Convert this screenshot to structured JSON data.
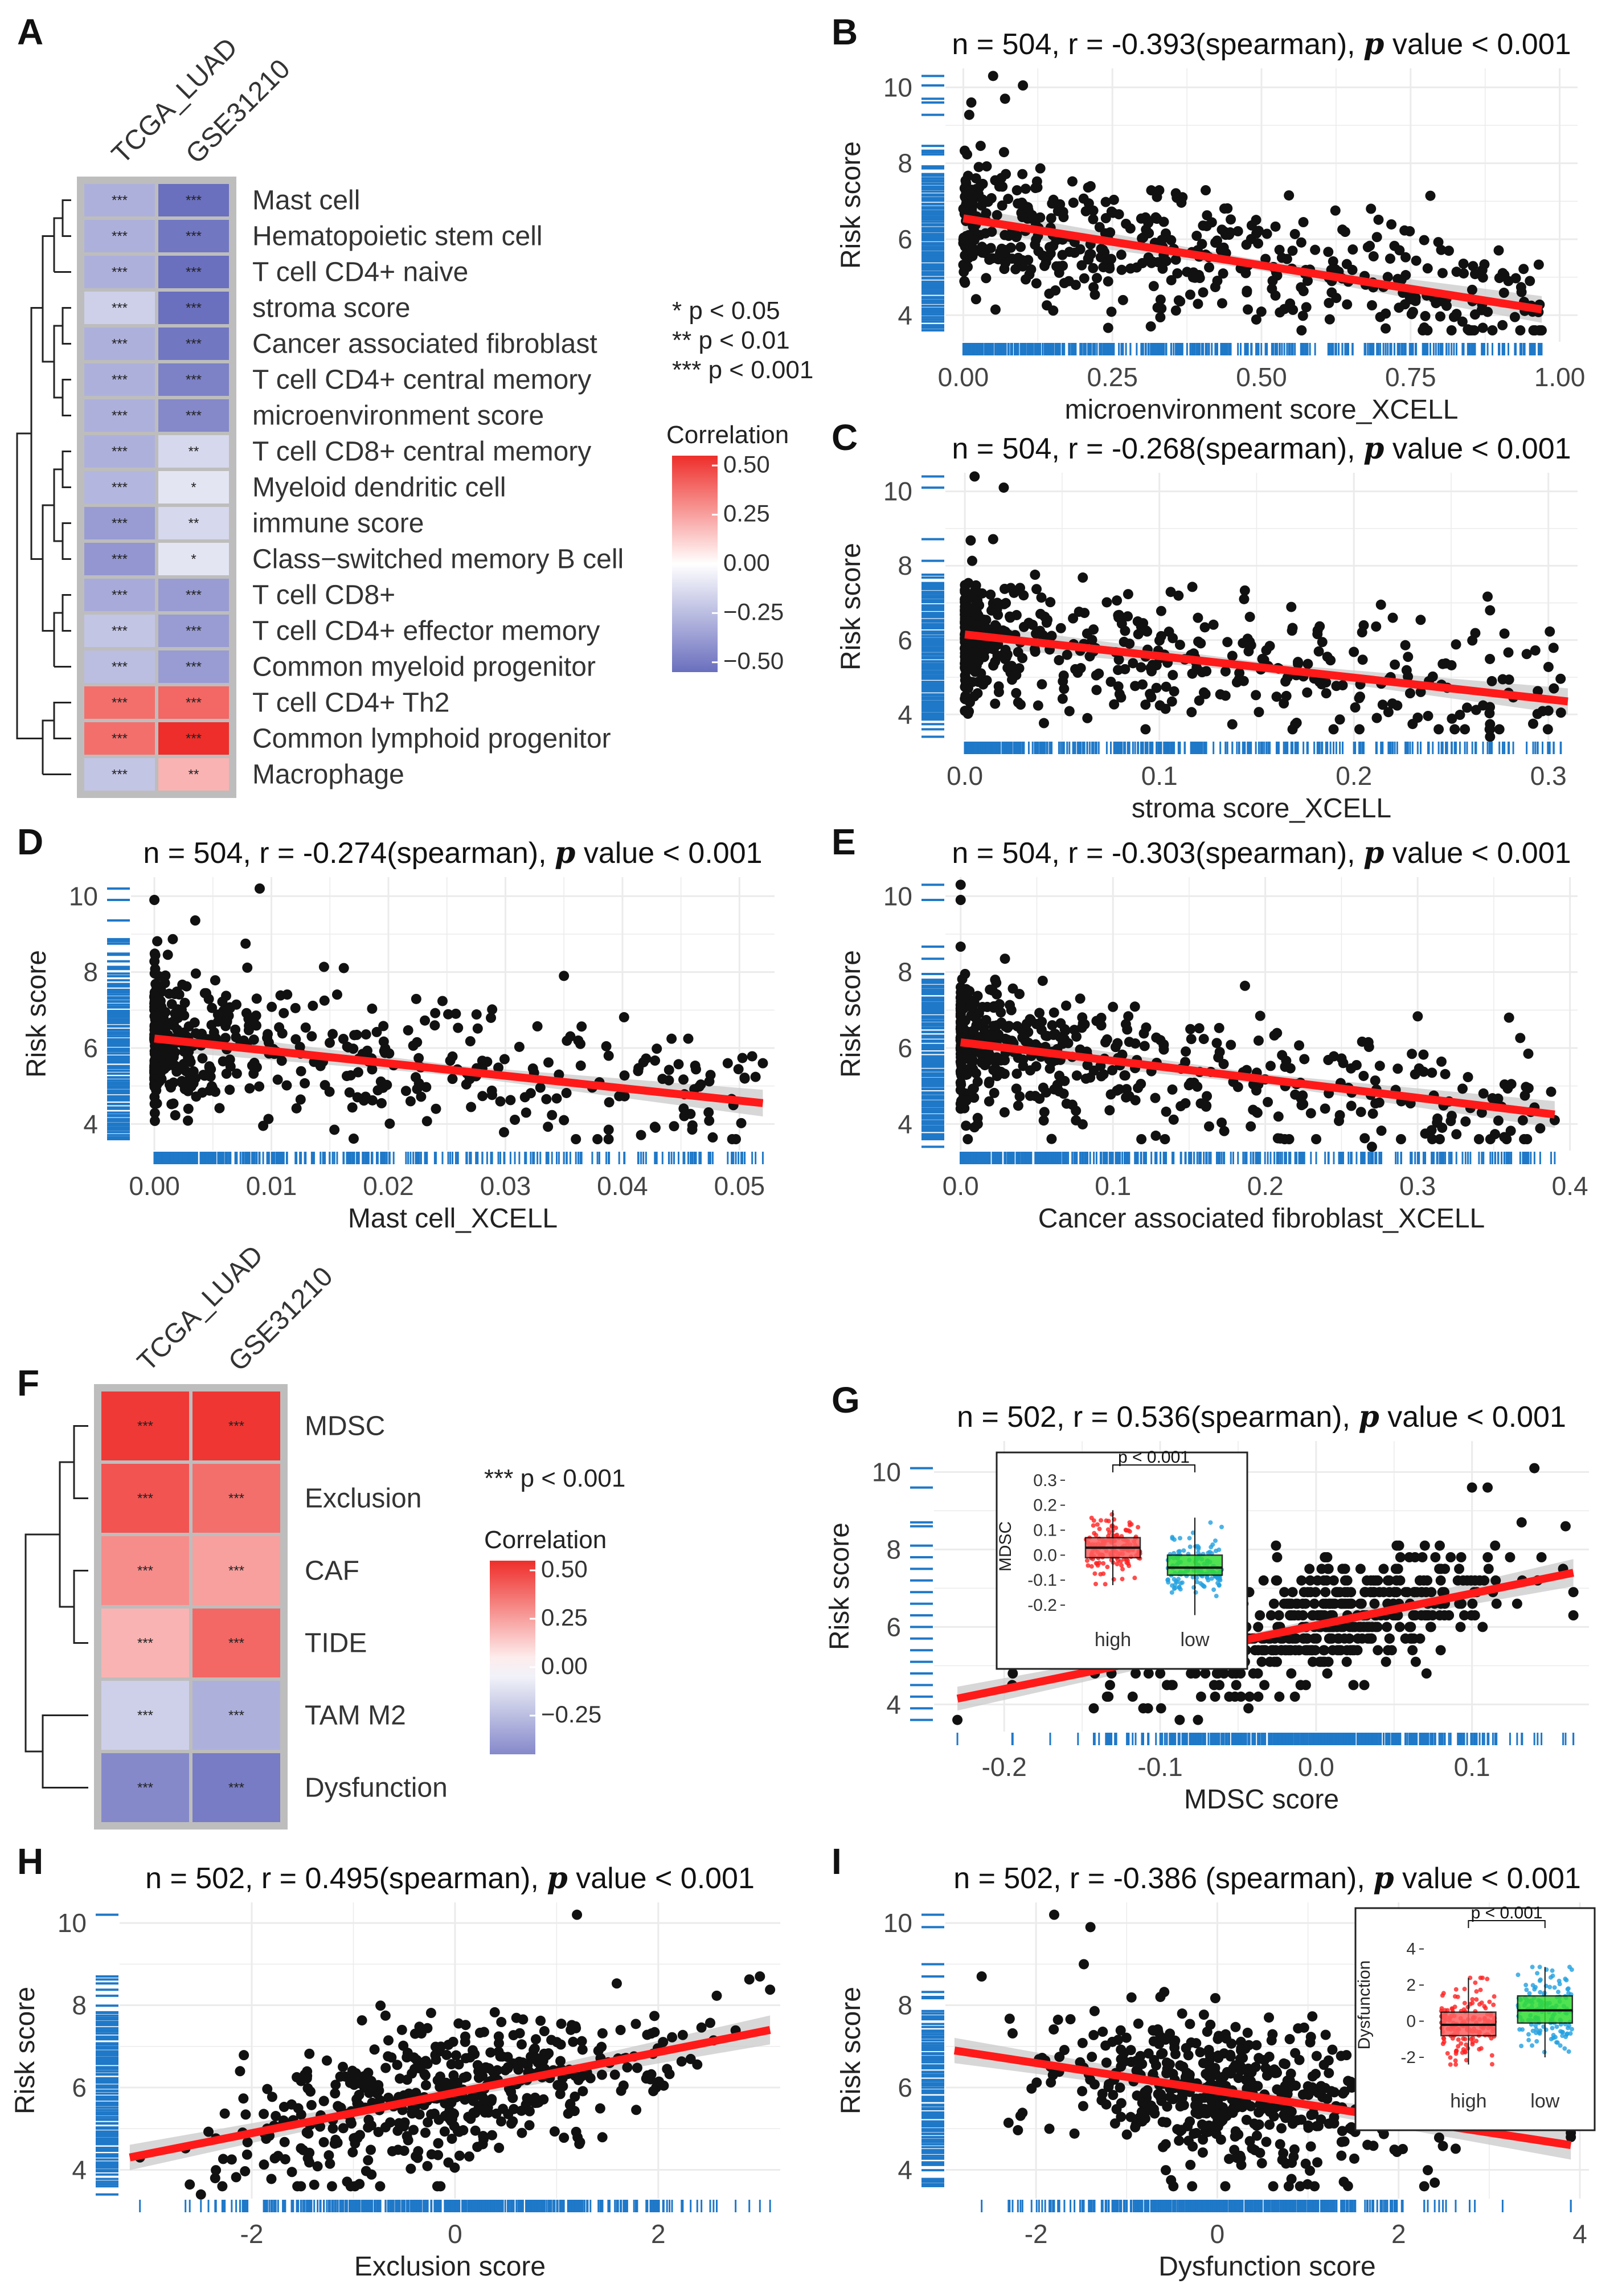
{
  "colors": {
    "blue_low": "#6a6fbe",
    "white_mid": "#ffffff",
    "red_high": "#ee2e2a",
    "rug": "#1f78c8",
    "fit_line": "#ff1a1a",
    "ci_band": "#c9c9c9",
    "points": "#111111",
    "grid": "#ebebeb",
    "heatmap_bg": "#bdbdbd",
    "box_high": "#ff2020",
    "box_low": "#20a0e0",
    "box_fill_high": "#ff6060",
    "box_fill_low": "#33dd33"
  },
  "sig_legend_a": [
    "*     p < 0.05",
    "**   p < 0.01",
    "*** p < 0.001"
  ],
  "sig_legend_f": [
    "*** p < 0.001"
  ],
  "chart_data": [
    {
      "panel": "A",
      "type": "heatmap",
      "columns": [
        "TCGA_LUAD",
        "GSE31210"
      ],
      "rows": [
        "Mast cell",
        "Hematopoietic stem cell",
        "T cell CD4+ naive",
        "stroma score",
        "Cancer associated fibroblast",
        "T cell CD4+ central memory",
        "microenvironment score",
        "T cell CD8+ central memory",
        "Myeloid dendritic cell",
        "immune score",
        "Class−switched memory B cell",
        "T cell CD8+",
        "T cell CD4+ effector memory",
        "Common myeloid progenitor",
        "T cell CD4+ Th2",
        "Common lymphoid progenitor",
        "Macrophage"
      ],
      "values": [
        [
          -0.3,
          -0.55
        ],
        [
          -0.3,
          -0.52
        ],
        [
          -0.3,
          -0.55
        ],
        [
          -0.18,
          -0.55
        ],
        [
          -0.3,
          -0.52
        ],
        [
          -0.3,
          -0.48
        ],
        [
          -0.3,
          -0.45
        ],
        [
          -0.3,
          -0.15
        ],
        [
          -0.28,
          -0.1
        ],
        [
          -0.38,
          -0.15
        ],
        [
          -0.4,
          -0.1
        ],
        [
          -0.32,
          -0.38
        ],
        [
          -0.22,
          -0.38
        ],
        [
          -0.25,
          -0.38
        ],
        [
          0.38,
          0.4
        ],
        [
          0.38,
          0.55
        ],
        [
          -0.22,
          0.2
        ]
      ],
      "labels": [
        [
          "***",
          "***"
        ],
        [
          "***",
          "***"
        ],
        [
          "***",
          "***"
        ],
        [
          "***",
          "***"
        ],
        [
          "***",
          "***"
        ],
        [
          "***",
          "***"
        ],
        [
          "***",
          "***"
        ],
        [
          "***",
          "**"
        ],
        [
          "***",
          "*"
        ],
        [
          "***",
          "**"
        ],
        [
          "***",
          "*"
        ],
        [
          "***",
          "***"
        ],
        [
          "***",
          "***"
        ],
        [
          "***",
          "***"
        ],
        [
          "***",
          "***"
        ],
        [
          "***",
          "***"
        ],
        [
          "***",
          "**"
        ]
      ],
      "legend_title": "Correlation",
      "legend_ticks": [
        0.5,
        0.25,
        0.0,
        -0.25,
        -0.5
      ],
      "legend_tick_labels": [
        "0.50",
        "0.25",
        "0.00",
        "−0.25",
        "−0.50"
      ],
      "value_range": [
        -0.55,
        0.55
      ]
    },
    {
      "panel": "B",
      "type": "scatter",
      "title_pre": "n = 504, r = -0.393(spearman),",
      "title_p": "p",
      "title_post": " value < 0.001",
      "xlabel": "microenvironment score_XCELL",
      "ylabel": "Risk score",
      "xlim": [
        -0.03,
        1.03
      ],
      "ylim": [
        3.3,
        10.5
      ],
      "xticks": [
        0,
        0.25,
        0.5,
        0.75,
        1.0
      ],
      "xtick_labels": [
        "0.00",
        "0.25",
        "0.50",
        "0.75",
        "1.00"
      ],
      "yticks": [
        4,
        6,
        8,
        10
      ],
      "ytick_labels": [
        "4",
        "6",
        "8",
        "10"
      ],
      "n": 504,
      "fit": {
        "x0": 0.0,
        "y0": 6.55,
        "x1": 0.97,
        "y1": 4.15
      },
      "x_dist": {
        "type": "skew",
        "max": 0.97,
        "power": 1.6
      },
      "resid_sd": 0.9,
      "outliers": [
        [
          0.05,
          10.3
        ],
        [
          0.1,
          10.05
        ],
        [
          0.07,
          9.7
        ],
        [
          0.95,
          4.9
        ]
      ]
    },
    {
      "panel": "C",
      "type": "scatter",
      "title_pre": "n = 504, r = -0.268(spearman),",
      "title_p": "p",
      "title_post": " value < 0.001",
      "xlabel": "stroma score_XCELL",
      "ylabel": "Risk score",
      "xlim": [
        -0.01,
        0.315
      ],
      "ylim": [
        3.3,
        10.5
      ],
      "xticks": [
        0,
        0.1,
        0.2,
        0.3
      ],
      "xtick_labels": [
        "0.0",
        "0.1",
        "0.2",
        "0.3"
      ],
      "yticks": [
        4,
        6,
        8,
        10
      ],
      "ytick_labels": [
        "4",
        "6",
        "8",
        "10"
      ],
      "n": 504,
      "fit": {
        "x0": 0.0,
        "y0": 6.15,
        "x1": 0.31,
        "y1": 4.35
      },
      "x_dist": {
        "type": "skew",
        "max": 0.31,
        "power": 2.6
      },
      "resid_sd": 0.9,
      "outliers": [
        [
          0.005,
          10.4
        ],
        [
          0.02,
          10.1
        ],
        [
          0.3,
          4.1
        ],
        [
          0.27,
          6.8
        ],
        [
          0.22,
          6.6
        ],
        [
          0.27,
          3.4
        ]
      ]
    },
    {
      "panel": "D",
      "type": "scatter",
      "title_pre": "n = 504, r = -0.274(spearman),",
      "title_p": "p",
      "title_post": " value < 0.001",
      "xlabel": "Mast cell_XCELL",
      "ylabel": "Risk score",
      "xlim": [
        -0.002,
        0.053
      ],
      "ylim": [
        3.3,
        10.5
      ],
      "xticks": [
        0,
        0.01,
        0.02,
        0.03,
        0.04,
        0.05
      ],
      "xtick_labels": [
        "0.00",
        "0.01",
        "0.02",
        "0.03",
        "0.04",
        "0.05"
      ],
      "yticks": [
        4,
        6,
        8,
        10
      ],
      "ytick_labels": [
        "4",
        "6",
        "8",
        "10"
      ],
      "n": 504,
      "fit": {
        "x0": 0.0,
        "y0": 6.25,
        "x1": 0.052,
        "y1": 4.55
      },
      "x_dist": {
        "type": "skew",
        "max": 0.052,
        "power": 2.8
      },
      "resid_sd": 0.9,
      "outliers": [
        [
          0.009,
          10.2
        ],
        [
          0.0,
          9.9
        ],
        [
          0.035,
          7.9
        ],
        [
          0.052,
          5.6
        ],
        [
          0.049,
          5.6
        ],
        [
          0.035,
          4.1
        ]
      ]
    },
    {
      "panel": "E",
      "type": "scatter",
      "title_pre": "n = 504, r = -0.303(spearman),",
      "title_p": "p",
      "title_post": " value < 0.001",
      "xlabel": "Cancer associated fibroblast_XCELL",
      "ylabel": "Risk score",
      "xlim": [
        -0.01,
        0.405
      ],
      "ylim": [
        3.3,
        10.5
      ],
      "xticks": [
        0,
        0.1,
        0.2,
        0.3,
        0.4
      ],
      "xtick_labels": [
        "0.0",
        "0.1",
        "0.2",
        "0.3",
        "0.4"
      ],
      "yticks": [
        4,
        6,
        8,
        10
      ],
      "ytick_labels": [
        "4",
        "6",
        "8",
        "10"
      ],
      "n": 504,
      "fit": {
        "x0": 0.0,
        "y0": 6.15,
        "x1": 0.39,
        "y1": 4.25
      },
      "x_dist": {
        "type": "skew",
        "max": 0.39,
        "power": 2.7
      },
      "resid_sd": 0.85,
      "outliers": [
        [
          0.0,
          10.3
        ],
        [
          0.0,
          9.9
        ],
        [
          0.36,
          6.8
        ],
        [
          0.39,
          4.1
        ],
        [
          0.27,
          3.4
        ]
      ]
    },
    {
      "panel": "F",
      "type": "heatmap",
      "columns": [
        "TCGA_LUAD",
        "GSE31210"
      ],
      "rows": [
        "MDSC",
        "Exclusion",
        "CAF",
        "TIDE",
        "TAM M2",
        "Dysfunction"
      ],
      "values": [
        [
          0.52,
          0.53
        ],
        [
          0.45,
          0.38
        ],
        [
          0.3,
          0.25
        ],
        [
          0.2,
          0.4
        ],
        [
          -0.18,
          -0.3
        ],
        [
          -0.45,
          -0.5
        ]
      ],
      "labels": [
        [
          "***",
          "***"
        ],
        [
          "***",
          "***"
        ],
        [
          "***",
          "***"
        ],
        [
          "***",
          "***"
        ],
        [
          "***",
          "***"
        ],
        [
          "***",
          "***"
        ]
      ],
      "legend_title": "Correlation",
      "legend_ticks": [
        0.5,
        0.25,
        0.0,
        -0.25
      ],
      "legend_tick_labels": [
        "0.50",
        "0.25",
        "0.00",
        "−0.25"
      ],
      "value_range": [
        -0.55,
        0.55
      ]
    },
    {
      "panel": "G",
      "type": "scatter",
      "title_pre": "n = 502, r = 0.536(spearman),",
      "title_p": "p",
      "title_post": " value < 0.001",
      "xlabel": "MDSC score",
      "ylabel": "Risk score",
      "xlim": [
        -0.245,
        0.175
      ],
      "ylim": [
        3.3,
        10.8
      ],
      "xticks": [
        -0.2,
        -0.1,
        0.0,
        0.1
      ],
      "xtick_labels": [
        "-0.2",
        "-0.1",
        "0.0",
        "0.1"
      ],
      "yticks": [
        4,
        6,
        8,
        10
      ],
      "ytick_labels": [
        "4",
        "6",
        "8",
        "10"
      ],
      "n": 502,
      "fit": {
        "x0": -0.23,
        "y0": 4.15,
        "x1": 0.165,
        "y1": 7.4
      },
      "x_dist": {
        "type": "normal",
        "mean": 0.0,
        "sd": 0.065,
        "min": -0.23,
        "max": 0.165
      },
      "resid_sd": 0.75,
      "rounding": 0.3,
      "outliers": [
        [
          -0.23,
          3.6
        ],
        [
          0.1,
          9.6
        ],
        [
          0.11,
          9.6
        ],
        [
          0.14,
          10.1
        ],
        [
          0.16,
          8.6
        ]
      ],
      "inset": {
        "ylabel": "MDSC",
        "groups": [
          "high",
          "low"
        ],
        "yticks": [
          -0.2,
          -0.1,
          0.0,
          0.1,
          0.2,
          0.3
        ],
        "ytick_labels": [
          "-0.2",
          "-0.1",
          "0.0",
          "0.1",
          "0.2",
          "0.3"
        ],
        "ylim": [
          -0.25,
          0.32
        ],
        "pval": "p < 0.001",
        "high": {
          "q1": -0.01,
          "median": 0.03,
          "q3": 0.07,
          "min": -0.12,
          "max": 0.18
        },
        "low": {
          "q1": -0.08,
          "median": -0.05,
          "q3": 0.0,
          "min": -0.24,
          "max": 0.15
        }
      }
    },
    {
      "panel": "H",
      "type": "scatter",
      "title_pre": "n = 502, r = 0.495(spearman),",
      "title_p": "p",
      "title_post": " value < 0.001",
      "xlabel": "Exclusion score",
      "ylabel": "Risk score",
      "xlim": [
        -3.3,
        3.2
      ],
      "ylim": [
        3.3,
        10.5
      ],
      "xticks": [
        -2,
        0,
        2
      ],
      "xtick_labels": [
        "-2",
        "0",
        "2"
      ],
      "yticks": [
        4,
        6,
        8,
        10
      ],
      "ytick_labels": [
        "4",
        "6",
        "8",
        "10"
      ],
      "n": 502,
      "fit": {
        "x0": -3.2,
        "y0": 4.3,
        "x1": 3.1,
        "y1": 7.4
      },
      "x_dist": {
        "type": "normal",
        "mean": 0.0,
        "sd": 1.05,
        "min": -3.2,
        "max": 3.1
      },
      "resid_sd": 0.85,
      "outliers": [
        [
          1.2,
          10.2
        ],
        [
          3.0,
          8.7
        ],
        [
          -3.1,
          4.3
        ],
        [
          -2.5,
          3.4
        ]
      ]
    },
    {
      "panel": "I",
      "type": "scatter",
      "title_pre": "n = 502, r = -0.386 (spearman),",
      "title_p": "p",
      "title_post": " value < 0.001",
      "xlabel": "Dysfunction score",
      "ylabel": "Risk score",
      "xlim": [
        -3.0,
        4.1
      ],
      "ylim": [
        3.3,
        10.5
      ],
      "xticks": [
        -2,
        0,
        2,
        4
      ],
      "xtick_labels": [
        "-2",
        "0",
        "2",
        "4"
      ],
      "yticks": [
        4,
        6,
        8,
        10
      ],
      "ytick_labels": [
        "4",
        "6",
        "8",
        "10"
      ],
      "n": 502,
      "fit": {
        "x0": -2.9,
        "y0": 6.9,
        "x1": 3.9,
        "y1": 4.6
      },
      "x_dist": {
        "type": "normal",
        "mean": 0.1,
        "sd": 1.05,
        "min": -2.9,
        "max": 3.9
      },
      "resid_sd": 0.85,
      "outliers": [
        [
          -1.8,
          10.2
        ],
        [
          -1.4,
          9.9
        ],
        [
          3.9,
          4.9
        ],
        [
          -2.6,
          8.7
        ]
      ],
      "inset": {
        "ylabel": "Dysfunction",
        "groups": [
          "high",
          "low"
        ],
        "yticks": [
          -2,
          0,
          2,
          4
        ],
        "ytick_labels": [
          "-2",
          "0",
          "2",
          "4"
        ],
        "ylim": [
          -3.2,
          5.0
        ],
        "pval": "p < 0.001",
        "high": {
          "q1": -0.8,
          "median": -0.2,
          "q3": 0.5,
          "min": -2.4,
          "max": 2.4
        },
        "low": {
          "q1": -0.1,
          "median": 0.6,
          "q3": 1.4,
          "min": -2.0,
          "max": 3.0
        }
      }
    }
  ]
}
